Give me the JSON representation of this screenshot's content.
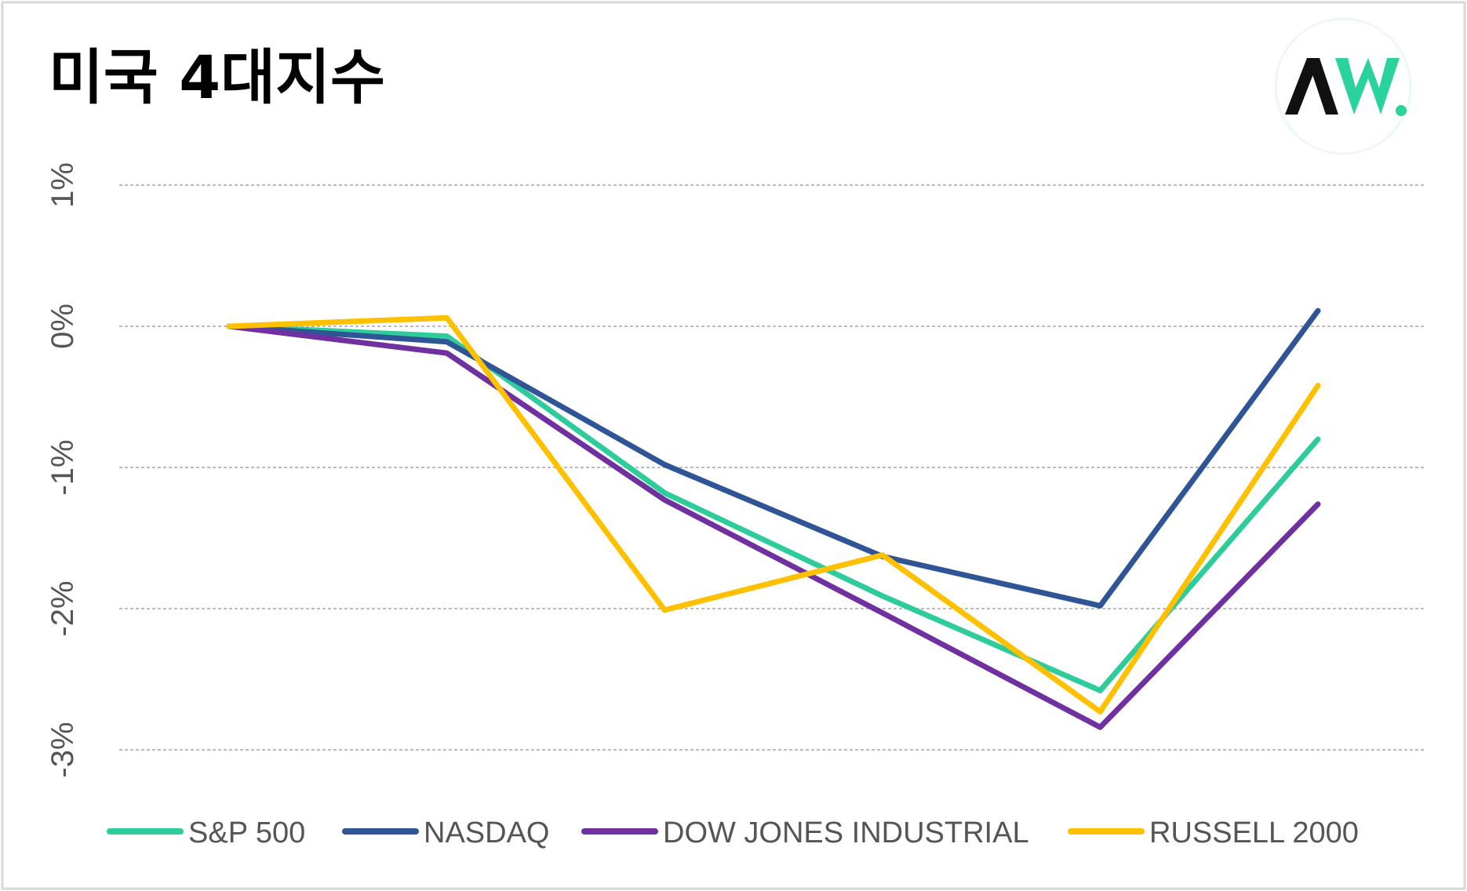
{
  "title": "미국 4대지수",
  "logo": {
    "name": "aw-logo",
    "text": "AW."
  },
  "colors": {
    "frame": "#d9d9d9",
    "grid": "#a6a6a6",
    "tick": "#555555",
    "logo_dark": "#111111",
    "logo_accent": "#2ad39b"
  },
  "chart_data": {
    "type": "line",
    "title": "미국 4대지수",
    "xlabel": "",
    "ylabel": "",
    "x": [
      1,
      2,
      3,
      4,
      5,
      6
    ],
    "ylim": [
      -3.4,
      1.35
    ],
    "yticks": [
      1,
      0,
      -1,
      -2,
      -3
    ],
    "ytick_labels": [
      "1%",
      "0%",
      "-1%",
      "-2%",
      "-3%"
    ],
    "grid": true,
    "legend": "bottom",
    "series": [
      {
        "name": "S&P 500",
        "color": "#2ecc9b",
        "values": [
          0,
          -0.07,
          -1.18,
          -1.91,
          -2.58,
          -0.8
        ]
      },
      {
        "name": "NASDAQ",
        "color": "#2f5597",
        "values": [
          0,
          -0.11,
          -0.98,
          -1.63,
          -1.98,
          0.11
        ]
      },
      {
        "name": "DOW JONES INDUSTRIAL",
        "color": "#7030a0",
        "values": [
          0,
          -0.19,
          -1.23,
          -2.03,
          -2.84,
          -1.26
        ]
      },
      {
        "name": "RUSSELL 2000",
        "color": "#ffc000",
        "values": [
          0,
          0.06,
          -2.01,
          -1.62,
          -2.73,
          -0.42
        ]
      }
    ]
  }
}
